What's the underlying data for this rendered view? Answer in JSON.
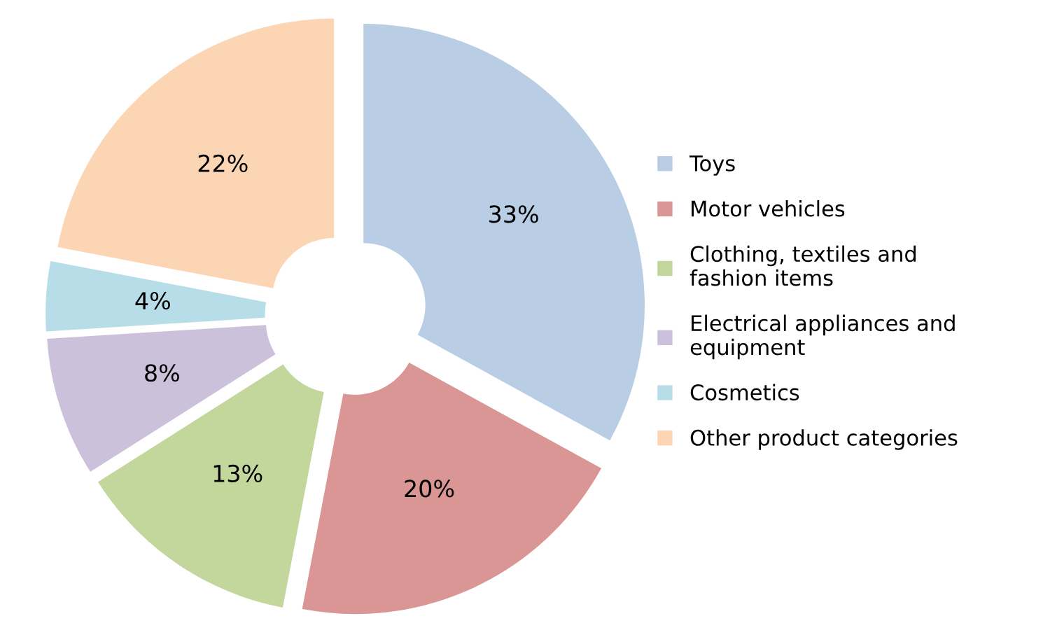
{
  "chart_data": {
    "type": "donut",
    "categories": [
      "Toys",
      "Motor vehicles",
      "Clothing, textiles and\nfashion items",
      "Electrical appliances and\nequipment",
      "Cosmetics",
      "Other product categories"
    ],
    "values": [
      33,
      20,
      13,
      8,
      4,
      22
    ],
    "value_labels": [
      "33%",
      "20%",
      "13%",
      "8%",
      "4%",
      "22%"
    ],
    "colors": [
      "#b9cde5",
      "#d99694",
      "#c3d69b",
      "#ccc1da",
      "#b7dee8",
      "#fcd5b5"
    ],
    "legend": "right"
  }
}
